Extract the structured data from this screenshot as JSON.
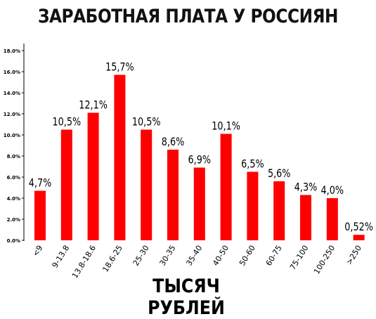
{
  "chart_data": {
    "type": "bar",
    "title": "ЗАРАБОТНАЯ ПЛАТА У РОССИЯН",
    "xlabel": "ТЫСЯЧ РУБЛЕЙ",
    "ylabel": "",
    "ylim": [
      0,
      18
    ],
    "yticks": [
      0,
      2,
      4,
      6,
      8,
      10,
      12,
      14,
      16,
      18
    ],
    "ytick_labels": [
      "0.0%",
      "2.0%",
      "4.0%",
      "6.0%",
      "8.0%",
      "10.0%",
      "12.0%",
      "14.0%",
      "16.0%",
      "18.0%"
    ],
    "categories": [
      "<9",
      "9-13.8",
      "13.8-18.6",
      "18.6-25",
      "25-30",
      "30-35",
      "35-40",
      "40-50",
      "50-60",
      "60-75",
      "75-100",
      "100-250",
      ">250"
    ],
    "values": [
      4.7,
      10.5,
      12.1,
      15.7,
      10.5,
      8.6,
      6.9,
      10.1,
      6.5,
      5.6,
      4.3,
      4.0,
      0.52
    ],
    "data_labels": [
      "4,7%",
      "10,5%",
      "12,1%",
      "15,7%",
      "10,5%",
      "8,6%",
      "6,9%",
      "10,1%",
      "6,5%",
      "5,6%",
      "4,3%",
      "4,0%",
      "0,52%"
    ],
    "bar_color": "#ff0000",
    "grid": false,
    "legend": "none"
  }
}
